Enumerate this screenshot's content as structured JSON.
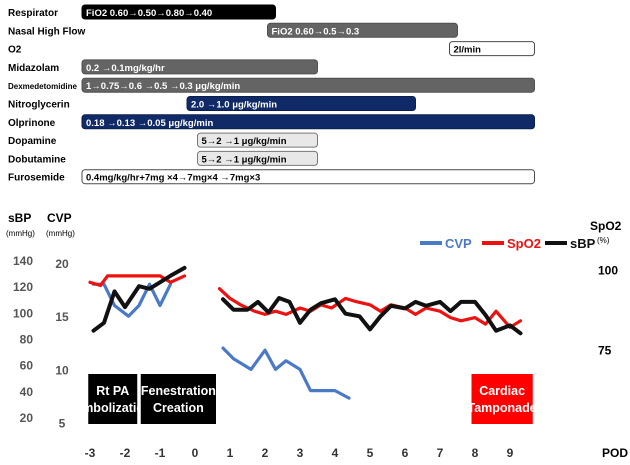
{
  "therapy_timeline": {
    "rows": [
      {
        "name": "Respirator",
        "bars": [
          {
            "from": -3,
            "to": 2.3,
            "style": "black",
            "text": "FiO2 0.60→0.50→0.80→0.40"
          }
        ]
      },
      {
        "name": "Nasal High Flow",
        "bars": [
          {
            "from": 2.3,
            "to": 7.5,
            "style": "gray",
            "text": "FiO2 0.60→0.5→0.3"
          }
        ]
      },
      {
        "name": "O2",
        "bars": [
          {
            "from": 7.5,
            "to": 9.7,
            "style": "white",
            "text": "2l/min"
          }
        ]
      },
      {
        "name": "Midazolam",
        "bars": [
          {
            "from": -3,
            "to": 3.5,
            "style": "gray",
            "text": "0.2                                 →0.1mg/kg/hr"
          }
        ]
      },
      {
        "name": "Dexmedetomidine",
        "small": true,
        "bars": [
          {
            "from": -3,
            "to": 9.7,
            "style": "gray",
            "text": "1→0.75→0.6          →0.5                      →0.3 μg/kg/min"
          }
        ]
      },
      {
        "name": "Nitroglycerin",
        "bars": [
          {
            "from": 0,
            "to": 6.3,
            "style": "navy",
            "text": "2.0                                  →1.0 μg/kg/min"
          }
        ]
      },
      {
        "name": "Olprinone",
        "bars": [
          {
            "from": -3,
            "to": 9.7,
            "style": "navy",
            "text": "0.18                                                                              →0.13            →0.05 μg/kg/min"
          }
        ]
      },
      {
        "name": "Dopamine",
        "bars": [
          {
            "from": 0.3,
            "to": 3.5,
            "style": "light",
            "text": "5→2      →1 μg/kg/min"
          }
        ]
      },
      {
        "name": "Dobutamine",
        "bars": [
          {
            "from": 0.3,
            "to": 3.5,
            "style": "light",
            "text": "5→2      →1 μg/kg/min"
          }
        ]
      },
      {
        "name": "Furosemide",
        "bars": [
          {
            "from": -3,
            "to": 9.7,
            "style": "white",
            "text": "0.4mg/kg/hr+7mg ×4→7mg×4            →7mg×3"
          }
        ]
      }
    ]
  },
  "chart_data": {
    "type": "line",
    "xlabel": "POD",
    "xticks": [
      "-3",
      "-2",
      "-1",
      "0",
      "1",
      "2",
      "3",
      "4",
      "5",
      "6",
      "7",
      "8",
      "9"
    ],
    "sbp_axis": {
      "label": "sBP",
      "unit": "(mmHg)",
      "ticks": [
        20,
        40,
        60,
        80,
        100,
        120,
        140
      ],
      "range": [
        10,
        150
      ]
    },
    "cvp_axis": {
      "label": "CVP",
      "unit": "(mmHg)",
      "ticks": [
        5,
        10,
        15,
        20
      ],
      "range": [
        4.3,
        21.5
      ]
    },
    "spo2_axis": {
      "label": "SpO2",
      "unit": "(%)",
      "ticks": [
        75,
        100
      ],
      "range": [
        50,
        107
      ]
    },
    "legend": {
      "position": "top-right"
    },
    "series": [
      {
        "name": "CVP",
        "axis": "cvp",
        "color": "#4a7ac7",
        "segments": [
          [
            [
              -2.9,
              18
            ],
            [
              -2.6,
              18
            ],
            [
              -2.3,
              16
            ],
            [
              -1.9,
              15
            ],
            [
              -1.6,
              16
            ],
            [
              -1.3,
              18
            ],
            [
              -1.0,
              16
            ],
            [
              -0.7,
              18
            ]
          ],
          [
            [
              0.8,
              12
            ],
            [
              1.1,
              11
            ],
            [
              1.6,
              10
            ],
            [
              2.0,
              11.8
            ],
            [
              2.3,
              10
            ],
            [
              2.6,
              10.8
            ],
            [
              3.0,
              10
            ],
            [
              3.3,
              8
            ],
            [
              3.6,
              8
            ],
            [
              4.0,
              8
            ],
            [
              4.4,
              7.3
            ]
          ]
        ]
      },
      {
        "name": "SpO2",
        "axis": "spo2",
        "color": "#ee1111",
        "segments": [
          [
            [
              -3.0,
              96
            ],
            [
              -2.7,
              95
            ],
            [
              -2.5,
              98
            ],
            [
              -2.2,
              98
            ],
            [
              -1.9,
              98
            ],
            [
              -1.4,
              98
            ],
            [
              -1.0,
              98
            ],
            [
              -0.7,
              96
            ],
            [
              -0.3,
              98
            ]
          ],
          [
            [
              0.7,
              94
            ],
            [
              1.0,
              91
            ],
            [
              1.3,
              89
            ],
            [
              1.7,
              87
            ],
            [
              2.0,
              86
            ],
            [
              2.3,
              87
            ],
            [
              2.6,
              86
            ],
            [
              3.0,
              88
            ],
            [
              3.3,
              87
            ],
            [
              3.6,
              89
            ],
            [
              3.9,
              88
            ],
            [
              4.3,
              91
            ],
            [
              4.6,
              90
            ],
            [
              5.0,
              89
            ],
            [
              5.3,
              87
            ],
            [
              5.6,
              89
            ],
            [
              6.0,
              88
            ],
            [
              6.3,
              86
            ],
            [
              6.6,
              88
            ],
            [
              7.0,
              87
            ],
            [
              7.3,
              85
            ],
            [
              7.6,
              84
            ],
            [
              8.0,
              85
            ],
            [
              8.3,
              83
            ],
            [
              8.6,
              87
            ],
            [
              9.0,
              82
            ],
            [
              9.3,
              84
            ]
          ]
        ]
      },
      {
        "name": "sBP",
        "axis": "sbp",
        "color": "#111111",
        "segments": [
          [
            [
              -2.9,
              86
            ],
            [
              -2.6,
              92
            ],
            [
              -2.3,
              116
            ],
            [
              -2.0,
              104
            ],
            [
              -1.6,
              120
            ],
            [
              -1.3,
              118
            ],
            [
              -1.0,
              123
            ],
            [
              -0.7,
              128
            ],
            [
              -0.3,
              134
            ]
          ],
          [
            [
              0.8,
              110
            ],
            [
              1.1,
              102
            ],
            [
              1.5,
              102
            ],
            [
              1.8,
              108
            ],
            [
              2.1,
              100
            ],
            [
              2.4,
              111
            ],
            [
              2.7,
              108
            ],
            [
              3.0,
              92
            ],
            [
              3.3,
              102
            ],
            [
              3.6,
              107
            ],
            [
              4.0,
              110
            ],
            [
              4.3,
              99
            ],
            [
              4.7,
              97
            ],
            [
              5.0,
              87
            ],
            [
              5.3,
              97
            ],
            [
              5.6,
              105
            ],
            [
              6.0,
              103
            ],
            [
              6.3,
              108
            ],
            [
              6.6,
              105
            ],
            [
              7.0,
              108
            ],
            [
              7.3,
              101
            ],
            [
              7.6,
              108
            ],
            [
              8.0,
              108
            ],
            [
              8.3,
              98
            ],
            [
              8.6,
              86
            ],
            [
              9.0,
              90
            ],
            [
              9.3,
              84
            ]
          ]
        ]
      }
    ],
    "events": [
      {
        "label_lines": [
          "Rt PA",
          "Embolization"
        ],
        "from": -3.05,
        "to": -1.65,
        "style": "black"
      },
      {
        "label_lines": [
          "Fenestration",
          "Creation"
        ],
        "from": -1.55,
        "to": 0.6,
        "style": "black"
      },
      {
        "label_lines": [
          "Cardiac",
          "Tamponade"
        ],
        "from": 7.9,
        "to": 9.65,
        "style": "red"
      }
    ]
  }
}
